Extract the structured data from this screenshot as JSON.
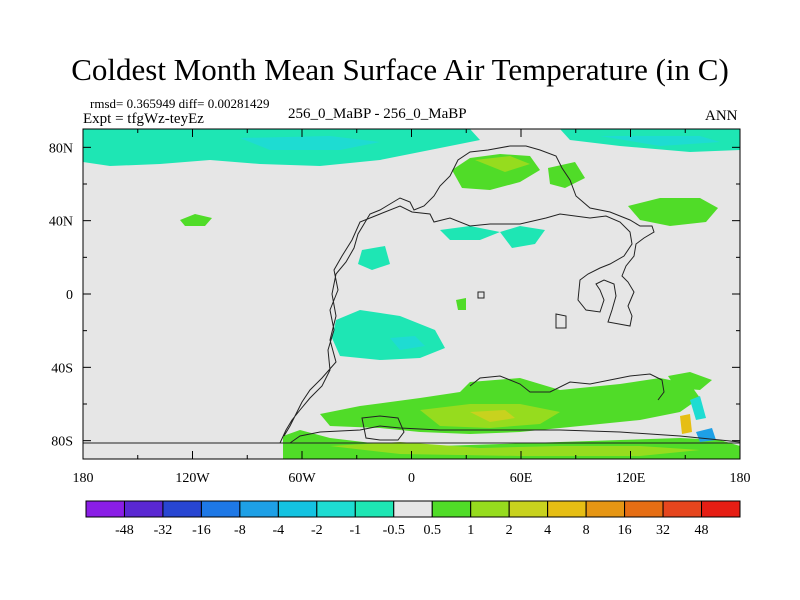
{
  "chart_data": {
    "type": "heatmap",
    "title": "Coldest Month Mean Surface Air Temperature (in C)",
    "stats_line": "rmsd= 0.365949 diff= 0.00281429",
    "expt_line": "Expt = tfgWz-teyEz",
    "case_label": "256_0_MaBP - 256_0_MaBP",
    "season": "ANN",
    "x_ticks": [
      "180",
      "120W",
      "60W",
      "0",
      "60E",
      "120E",
      "180"
    ],
    "x_tick_lons": [
      -180,
      -120,
      -60,
      0,
      60,
      120,
      180
    ],
    "y_ticks": [
      "80N",
      "40N",
      "0",
      "40S",
      "80S"
    ],
    "y_tick_lats": [
      80,
      40,
      0,
      -40,
      -80
    ],
    "xlim": [
      -180,
      180
    ],
    "ylim": [
      -90,
      90
    ],
    "colorbar_labels": [
      "-48",
      "-32",
      "-16",
      "-8",
      "-4",
      "-2",
      "-1",
      "-0.5",
      "0.5",
      "1",
      "2",
      "4",
      "8",
      "16",
      "32",
      "48"
    ],
    "colorbar_colors": [
      "#8a1ee6",
      "#5a28d2",
      "#2846d2",
      "#1e78e6",
      "#1ea0e6",
      "#14c3e1",
      "#1edcd2",
      "#1ee6b4",
      "#e6e6e6",
      "#50dc28",
      "#96dc1e",
      "#c8d21e",
      "#e6be14",
      "#e69614",
      "#e66e14",
      "#e6461e",
      "#e61e14"
    ],
    "neutral_value_range": [
      -0.5,
      0.5
    ],
    "neutral_color": "#e6e6e6"
  }
}
